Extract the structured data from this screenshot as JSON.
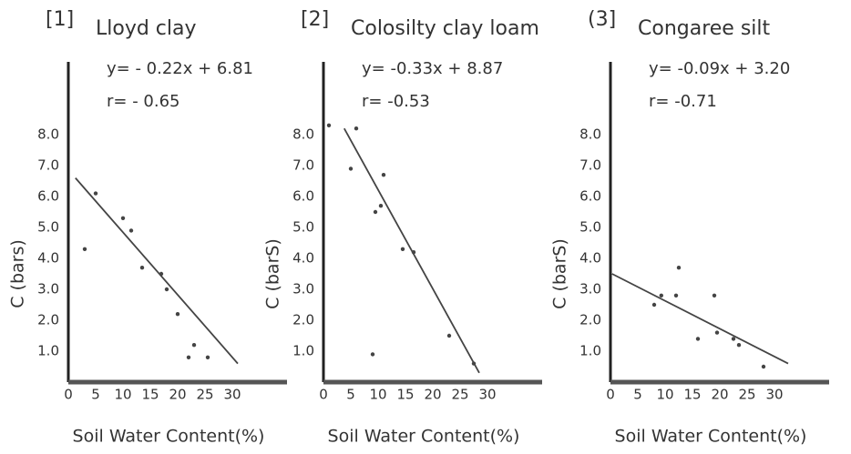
{
  "chart_data": [
    {
      "type": "scatter",
      "number": "[1]",
      "title": "Lloyd clay",
      "equation": "y= - 0.22x + 6.81",
      "r": "r= - 0.65",
      "x_label": "Soil Water Content(%)",
      "y_label": "C (bars)",
      "x": [
        3,
        5,
        10,
        11.5,
        13.5,
        17,
        18,
        20,
        22,
        23,
        25.5
      ],
      "values": [
        4.3,
        6.1,
        5.3,
        4.9,
        3.7,
        3.5,
        3.0,
        2.2,
        0.8,
        1.2,
        0.8
      ],
      "fit_line": {
        "x": [
          1.3,
          31
        ],
        "y": [
          6.6,
          0.6
        ]
      },
      "color": "#444",
      "xlim": [
        0,
        35
      ],
      "ylim": [
        0,
        10
      ],
      "xticks": [
        0,
        5,
        10,
        15,
        20,
        25,
        30
      ],
      "yticks": [
        {
          "value": 1,
          "label": "1.0"
        },
        {
          "value": 2,
          "label": "2.0"
        },
        {
          "value": 3,
          "label": "3.0"
        },
        {
          "value": 4,
          "label": "4.0"
        },
        {
          "value": 5,
          "label": "5.0"
        },
        {
          "value": 6,
          "label": "6.0"
        },
        {
          "value": 7,
          "label": "7.0"
        },
        {
          "value": 8,
          "label": "8.0"
        }
      ]
    },
    {
      "type": "scatter",
      "number": "[2]",
      "title": "Colosilty clay loam",
      "equation": "y= -0.33x + 8.87",
      "r": "r= -0.53",
      "x_label": "Soil Water Content(%)",
      "y_label": "C (barS)",
      "x": [
        1,
        6,
        5,
        11,
        10.5,
        9.5,
        14.5,
        16.5,
        9,
        23,
        27.5
      ],
      "values": [
        8.3,
        8.2,
        6.9,
        6.7,
        5.7,
        5.5,
        4.3,
        4.2,
        0.9,
        1.5,
        0.6
      ],
      "fit_line": {
        "x": [
          3.8,
          28.5
        ],
        "y": [
          8.2,
          0.3
        ]
      },
      "color": "#444",
      "xlim": [
        0,
        35
      ],
      "ylim": [
        0,
        10
      ],
      "xticks": [
        0,
        5,
        10,
        15,
        20,
        25,
        30
      ],
      "yticks": [
        {
          "value": 1,
          "label": "1.0"
        },
        {
          "value": 2,
          "label": "2.0"
        },
        {
          "value": 3,
          "label": "3.0"
        },
        {
          "value": 4,
          "label": "4.0"
        },
        {
          "value": 5,
          "label": "5.0"
        },
        {
          "value": 6,
          "label": "6.0"
        },
        {
          "value": 7,
          "label": "7.0"
        },
        {
          "value": 8,
          "label": "8.0"
        }
      ]
    },
    {
      "type": "scatter",
      "number": "(3]",
      "title": "Congaree silt",
      "equation": "y= -0.09x + 3.20",
      "r": "r= -0.71",
      "x_label": "Soil Water Content(%)",
      "y_label": "C (barS)",
      "x": [
        8,
        9.3,
        12,
        12.5,
        16,
        19,
        19.5,
        22.5,
        23.5,
        28
      ],
      "values": [
        2.5,
        2.8,
        2.8,
        3.7,
        1.4,
        2.8,
        1.6,
        1.4,
        1.2,
        0.5
      ],
      "fit_line": {
        "x": [
          0.3,
          32.5
        ],
        "y": [
          3.5,
          0.6
        ]
      },
      "color": "#444",
      "xlim": [
        0,
        35
      ],
      "ylim": [
        0,
        10
      ],
      "xticks": [
        0,
        5,
        10,
        15,
        20,
        25,
        30
      ],
      "yticks": [
        {
          "value": 1,
          "label": "1.0"
        },
        {
          "value": 2,
          "label": "2.0"
        },
        {
          "value": 3,
          "label": "3.0"
        },
        {
          "value": 4,
          "label": "4.0"
        },
        {
          "value": 5,
          "label": "5.0"
        },
        {
          "value": 6,
          "label": "6.0"
        },
        {
          "value": 7,
          "label": "7.0"
        },
        {
          "value": 8,
          "label": "8.0"
        }
      ]
    }
  ]
}
